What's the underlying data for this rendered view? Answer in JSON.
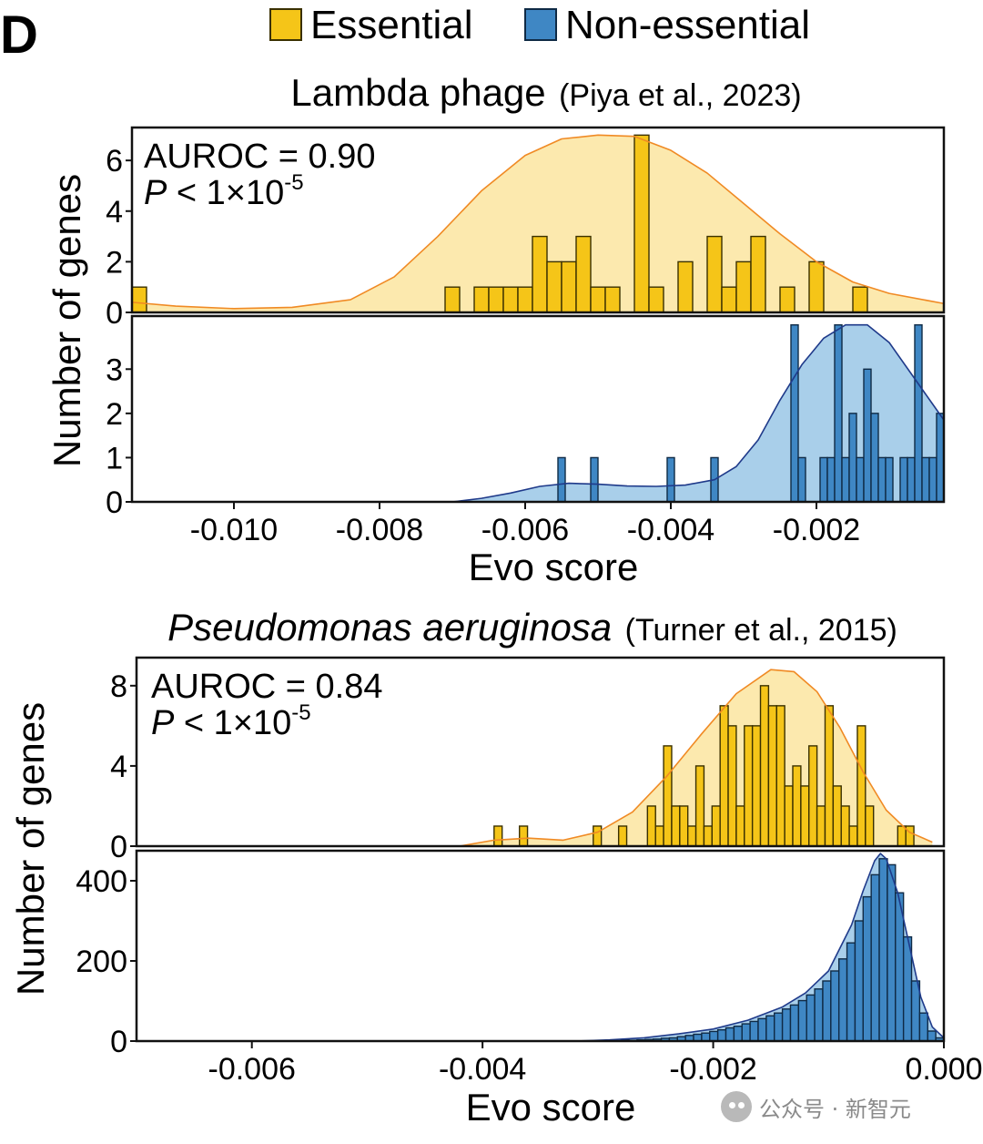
{
  "panel_label": "D",
  "legend": {
    "essential": {
      "label": "Essential",
      "color": "#F5C518",
      "edge": "#3a3000"
    },
    "non_essential": {
      "label": "Non-essential",
      "color": "#3F87C4",
      "edge": "#0f2a45"
    }
  },
  "kde_colors": {
    "essential_fill": "#FCE9AE",
    "essential_line": "#F08A24",
    "non_essential_fill": "#A9CFEA",
    "non_essential_line": "#1F3A8A"
  },
  "watermark": "公众号 · 新智元",
  "chart_data": [
    {
      "type": "histogram",
      "title": "Lambda phage",
      "title_citation": "(Piya et al., 2023)",
      "xlabel": "Evo score",
      "ylabel": "Number of genes",
      "xlim": [
        -0.0114,
        -0.00025
      ],
      "xticks": [
        -0.01,
        -0.008,
        -0.006,
        -0.004,
        -0.002
      ],
      "xtick_labels": [
        "-0.010",
        "-0.008",
        "-0.006",
        "-0.004",
        "-0.002"
      ],
      "annotation": {
        "auroc": "AUROC = 0.90",
        "p_italic": "P",
        "p_rest": " < 1×10",
        "p_exp": "-5"
      },
      "essential": {
        "name": "Essential",
        "ylim": [
          0,
          7.3
        ],
        "yticks": [
          0,
          2,
          4,
          6
        ],
        "ytick_labels": [
          "0",
          "2",
          "4",
          "6"
        ],
        "bin_width": 0.0002,
        "bins": [
          {
            "x": -0.0114,
            "n": 1
          },
          {
            "x": -0.0071,
            "n": 1
          },
          {
            "x": -0.0067,
            "n": 1
          },
          {
            "x": -0.0065,
            "n": 1
          },
          {
            "x": -0.0063,
            "n": 1
          },
          {
            "x": -0.0061,
            "n": 1
          },
          {
            "x": -0.0059,
            "n": 3
          },
          {
            "x": -0.0057,
            "n": 2
          },
          {
            "x": -0.0055,
            "n": 2
          },
          {
            "x": -0.0053,
            "n": 3
          },
          {
            "x": -0.0051,
            "n": 1
          },
          {
            "x": -0.0049,
            "n": 1
          },
          {
            "x": -0.0045,
            "n": 7
          },
          {
            "x": -0.0043,
            "n": 1
          },
          {
            "x": -0.0039,
            "n": 2
          },
          {
            "x": -0.0035,
            "n": 3
          },
          {
            "x": -0.0033,
            "n": 1
          },
          {
            "x": -0.0031,
            "n": 2
          },
          {
            "x": -0.0029,
            "n": 3
          },
          {
            "x": -0.0025,
            "n": 1
          },
          {
            "x": -0.0021,
            "n": 2
          },
          {
            "x": -0.0015,
            "n": 1
          }
        ],
        "kde": [
          [
            -0.0114,
            0.4
          ],
          [
            -0.0108,
            0.25
          ],
          [
            -0.01,
            0.15
          ],
          [
            -0.0092,
            0.2
          ],
          [
            -0.0084,
            0.5
          ],
          [
            -0.0078,
            1.4
          ],
          [
            -0.0072,
            3.0
          ],
          [
            -0.0066,
            4.8
          ],
          [
            -0.006,
            6.2
          ],
          [
            -0.0055,
            6.85
          ],
          [
            -0.005,
            7.0
          ],
          [
            -0.0045,
            6.95
          ],
          [
            -0.004,
            6.4
          ],
          [
            -0.0035,
            5.5
          ],
          [
            -0.003,
            4.3
          ],
          [
            -0.0025,
            3.1
          ],
          [
            -0.002,
            2.0
          ],
          [
            -0.0015,
            1.2
          ],
          [
            -0.001,
            0.75
          ],
          [
            -0.00025,
            0.35
          ]
        ]
      },
      "non_essential": {
        "name": "Non-essential",
        "ylim": [
          0,
          4.2
        ],
        "yticks": [
          0,
          1,
          2,
          3
        ],
        "ytick_labels": [
          "0",
          "1",
          "2",
          "3"
        ],
        "bin_width": 0.0001,
        "bins": [
          {
            "x": -0.00555,
            "n": 1
          },
          {
            "x": -0.0051,
            "n": 1
          },
          {
            "x": -0.00405,
            "n": 1
          },
          {
            "x": -0.00345,
            "n": 1
          },
          {
            "x": -0.00235,
            "n": 4
          },
          {
            "x": -0.00225,
            "n": 1
          },
          {
            "x": -0.00195,
            "n": 1
          },
          {
            "x": -0.00185,
            "n": 1
          },
          {
            "x": -0.00175,
            "n": 4
          },
          {
            "x": -0.00165,
            "n": 1
          },
          {
            "x": -0.00155,
            "n": 2
          },
          {
            "x": -0.00145,
            "n": 1
          },
          {
            "x": -0.00135,
            "n": 3
          },
          {
            "x": -0.00125,
            "n": 2
          },
          {
            "x": -0.00115,
            "n": 1
          },
          {
            "x": -0.00105,
            "n": 1
          },
          {
            "x": -0.00085,
            "n": 1
          },
          {
            "x": -0.00075,
            "n": 1
          },
          {
            "x": -0.00065,
            "n": 4
          },
          {
            "x": -0.00055,
            "n": 1
          },
          {
            "x": -0.00045,
            "n": 1
          },
          {
            "x": -0.00035,
            "n": 2
          },
          {
            "x": -0.00025,
            "n": 1
          }
        ],
        "kde": [
          [
            -0.007,
            0.0
          ],
          [
            -0.0066,
            0.08
          ],
          [
            -0.0062,
            0.2
          ],
          [
            -0.0058,
            0.35
          ],
          [
            -0.0054,
            0.42
          ],
          [
            -0.005,
            0.4
          ],
          [
            -0.0046,
            0.36
          ],
          [
            -0.0042,
            0.35
          ],
          [
            -0.0038,
            0.38
          ],
          [
            -0.0034,
            0.5
          ],
          [
            -0.0031,
            0.8
          ],
          [
            -0.0028,
            1.4
          ],
          [
            -0.0025,
            2.3
          ],
          [
            -0.0022,
            3.1
          ],
          [
            -0.0019,
            3.7
          ],
          [
            -0.0016,
            4.0
          ],
          [
            -0.0013,
            4.0
          ],
          [
            -0.001,
            3.6
          ],
          [
            -0.0007,
            2.9
          ],
          [
            -0.0004,
            2.2
          ],
          [
            -0.00025,
            1.85
          ]
        ]
      }
    },
    {
      "type": "histogram",
      "title_italic": "Pseudomonas aeruginosa",
      "title_citation": "(Turner et al., 2015)",
      "xlabel": "Evo score",
      "ylabel": "Number of genes",
      "xlim": [
        -0.007,
        0.0
      ],
      "xticks": [
        -0.006,
        -0.004,
        -0.002,
        0.0
      ],
      "xtick_labels": [
        "-0.006",
        "-0.004",
        "-0.002",
        "0.000"
      ],
      "annotation": {
        "auroc": "AUROC = 0.84",
        "p_italic": "P",
        "p_rest": " < 1×10",
        "p_exp": "-5"
      },
      "essential": {
        "name": "Essential",
        "ylim": [
          0,
          9.4
        ],
        "yticks": [
          0,
          4,
          8
        ],
        "ytick_labels": [
          "0",
          "4",
          "8"
        ],
        "bin_width": 7e-05,
        "bins": [
          {
            "x": -0.0039,
            "n": 1
          },
          {
            "x": -0.00368,
            "n": 1
          },
          {
            "x": -0.00304,
            "n": 1
          },
          {
            "x": -0.00282,
            "n": 1
          },
          {
            "x": -0.00257,
            "n": 2
          },
          {
            "x": -0.0025,
            "n": 1
          },
          {
            "x": -0.00243,
            "n": 5
          },
          {
            "x": -0.00236,
            "n": 2
          },
          {
            "x": -0.00229,
            "n": 2
          },
          {
            "x": -0.00222,
            "n": 1
          },
          {
            "x": -0.00215,
            "n": 4
          },
          {
            "x": -0.00208,
            "n": 1
          },
          {
            "x": -0.00201,
            "n": 2
          },
          {
            "x": -0.00194,
            "n": 7
          },
          {
            "x": -0.00187,
            "n": 6
          },
          {
            "x": -0.0018,
            "n": 2
          },
          {
            "x": -0.00173,
            "n": 6
          },
          {
            "x": -0.00166,
            "n": 6
          },
          {
            "x": -0.00159,
            "n": 8
          },
          {
            "x": -0.00152,
            "n": 7
          },
          {
            "x": -0.00145,
            "n": 7
          },
          {
            "x": -0.00138,
            "n": 3
          },
          {
            "x": -0.00131,
            "n": 4
          },
          {
            "x": -0.00124,
            "n": 3
          },
          {
            "x": -0.00117,
            "n": 5
          },
          {
            "x": -0.0011,
            "n": 2
          },
          {
            "x": -0.00103,
            "n": 7
          },
          {
            "x": -0.00096,
            "n": 3
          },
          {
            "x": -0.00089,
            "n": 2
          },
          {
            "x": -0.00082,
            "n": 1
          },
          {
            "x": -0.00075,
            "n": 6
          },
          {
            "x": -0.00068,
            "n": 2
          },
          {
            "x": -0.0004,
            "n": 1
          },
          {
            "x": -0.00033,
            "n": 1
          }
        ],
        "kde": [
          [
            -0.0042,
            0.0
          ],
          [
            -0.0039,
            0.3
          ],
          [
            -0.0036,
            0.4
          ],
          [
            -0.0033,
            0.3
          ],
          [
            -0.003,
            0.7
          ],
          [
            -0.0027,
            1.7
          ],
          [
            -0.0024,
            3.5
          ],
          [
            -0.0021,
            5.6
          ],
          [
            -0.0018,
            7.6
          ],
          [
            -0.0015,
            8.8
          ],
          [
            -0.0013,
            8.7
          ],
          [
            -0.0011,
            7.7
          ],
          [
            -0.0009,
            5.9
          ],
          [
            -0.0007,
            3.7
          ],
          [
            -0.0005,
            1.8
          ],
          [
            -0.0003,
            0.7
          ],
          [
            -0.0001,
            0.2
          ]
        ]
      },
      "non_essential": {
        "name": "Non-essential",
        "ylim": [
          0,
          475
        ],
        "yticks": [
          0,
          200,
          400
        ],
        "ytick_labels": [
          "0",
          "200",
          "400"
        ],
        "bin_width": 7e-05,
        "bins": [
          {
            "x": -0.0028,
            "n": 3
          },
          {
            "x": -0.00273,
            "n": 2
          },
          {
            "x": -0.00266,
            "n": 3
          },
          {
            "x": -0.00259,
            "n": 4
          },
          {
            "x": -0.00252,
            "n": 5
          },
          {
            "x": -0.00245,
            "n": 7
          },
          {
            "x": -0.00238,
            "n": 8
          },
          {
            "x": -0.00231,
            "n": 11
          },
          {
            "x": -0.00224,
            "n": 14
          },
          {
            "x": -0.00217,
            "n": 17
          },
          {
            "x": -0.0021,
            "n": 20
          },
          {
            "x": -0.00203,
            "n": 24
          },
          {
            "x": -0.00196,
            "n": 28
          },
          {
            "x": -0.00189,
            "n": 33
          },
          {
            "x": -0.00182,
            "n": 37
          },
          {
            "x": -0.00175,
            "n": 43
          },
          {
            "x": -0.00168,
            "n": 49
          },
          {
            "x": -0.00161,
            "n": 56
          },
          {
            "x": -0.00154,
            "n": 63
          },
          {
            "x": -0.00147,
            "n": 70
          },
          {
            "x": -0.0014,
            "n": 80
          },
          {
            "x": -0.00133,
            "n": 90
          },
          {
            "x": -0.00126,
            "n": 101
          },
          {
            "x": -0.00119,
            "n": 115
          },
          {
            "x": -0.00112,
            "n": 130
          },
          {
            "x": -0.00105,
            "n": 150
          },
          {
            "x": -0.00098,
            "n": 175
          },
          {
            "x": -0.00091,
            "n": 205
          },
          {
            "x": -0.00084,
            "n": 245
          },
          {
            "x": -0.00077,
            "n": 300
          },
          {
            "x": -0.0007,
            "n": 360
          },
          {
            "x": -0.00063,
            "n": 415
          },
          {
            "x": -0.00056,
            "n": 455
          },
          {
            "x": -0.00049,
            "n": 440
          },
          {
            "x": -0.00042,
            "n": 370
          },
          {
            "x": -0.00035,
            "n": 260
          },
          {
            "x": -0.00028,
            "n": 150
          },
          {
            "x": -0.00021,
            "n": 70
          },
          {
            "x": -0.00014,
            "n": 25
          },
          {
            "x": -7e-05,
            "n": 8
          }
        ],
        "kde": [
          [
            -0.0032,
            0.0
          ],
          [
            -0.0029,
            3
          ],
          [
            -0.0026,
            8
          ],
          [
            -0.0023,
            18
          ],
          [
            -0.002,
            30
          ],
          [
            -0.0017,
            52
          ],
          [
            -0.0014,
            85
          ],
          [
            -0.0012,
            120
          ],
          [
            -0.001,
            175
          ],
          [
            -0.0008,
            290
          ],
          [
            -0.0007,
            375
          ],
          [
            -0.0006,
            450
          ],
          [
            -0.00055,
            468
          ],
          [
            -0.0005,
            455
          ],
          [
            -0.0004,
            370
          ],
          [
            -0.0003,
            240
          ],
          [
            -0.0002,
            110
          ],
          [
            -0.0001,
            35
          ],
          [
            0.0,
            8
          ]
        ]
      }
    }
  ]
}
